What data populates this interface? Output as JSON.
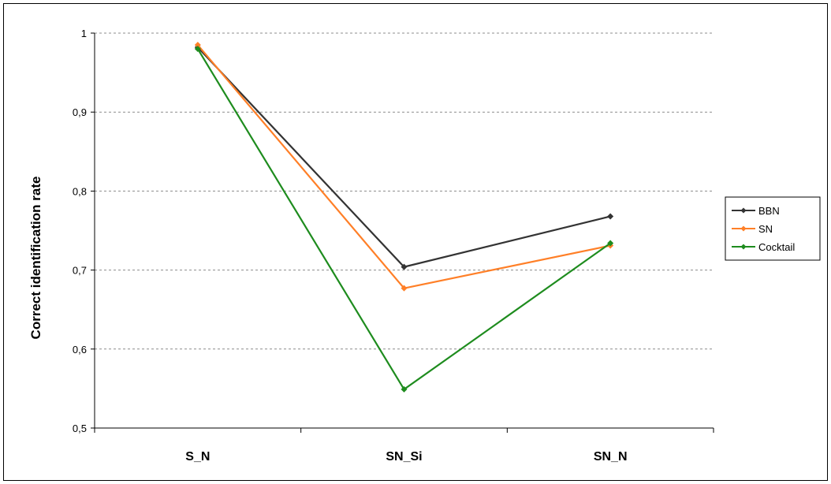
{
  "chart_data": {
    "type": "line",
    "title": "",
    "xlabel": "",
    "ylabel": "Correct identification rate",
    "categories": [
      "S_N",
      "SN_Si",
      "SN_N"
    ],
    "ylim": [
      0.5,
      1
    ],
    "yticks": [
      0.5,
      0.6,
      0.7,
      0.8,
      0.9,
      1
    ],
    "ytick_labels": [
      "0,5",
      "0,6",
      "0,7",
      "0,8",
      "0,9",
      "1"
    ],
    "grid": "horizontal dashed",
    "legend_position": "right",
    "series": [
      {
        "name": "BBN",
        "color": "#333333",
        "values": [
          0.982,
          0.704,
          0.768
        ]
      },
      {
        "name": "SN",
        "color": "#ff7f27",
        "values": [
          0.985,
          0.677,
          0.731
        ]
      },
      {
        "name": "Cocktail",
        "color": "#1e8c1e",
        "values": [
          0.98,
          0.549,
          0.734
        ]
      }
    ]
  }
}
